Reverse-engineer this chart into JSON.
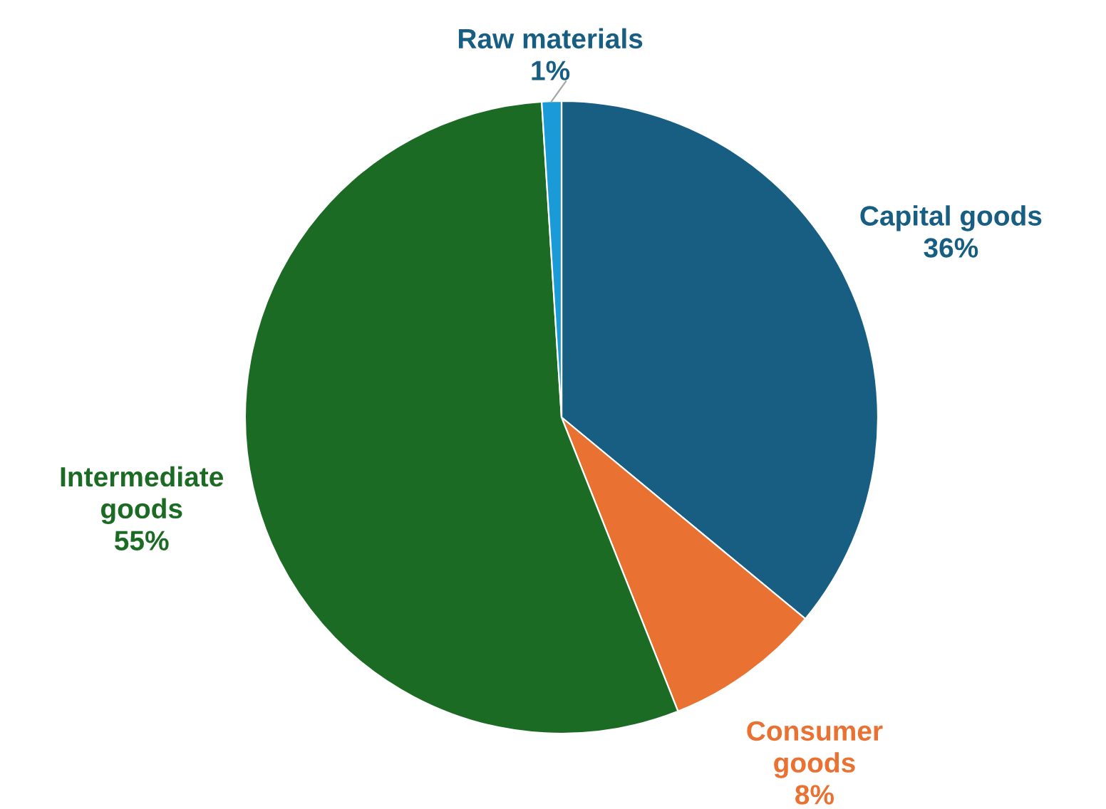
{
  "chart_data": {
    "type": "pie",
    "categories": [
      "Capital goods",
      "Consumer goods",
      "Intermediate goods",
      "Raw materials"
    ],
    "values": [
      36,
      8,
      55,
      1
    ],
    "value_labels": [
      "36%",
      "8%",
      "55%",
      "1%"
    ],
    "colors": [
      "#175e82",
      "#e97132",
      "#1c6b24",
      "#1a9ad6"
    ]
  }
}
